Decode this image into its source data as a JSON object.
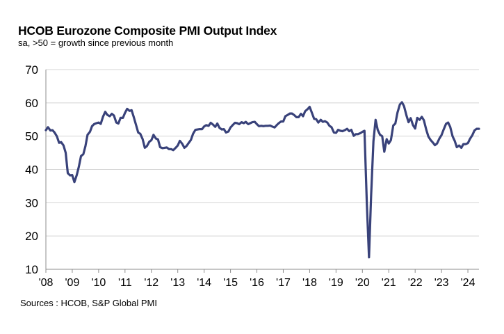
{
  "chart_data": {
    "type": "line",
    "title": "HCOB Eurozone Composite PMI Output Index",
    "subtitle": "sa, >50 = growth  since previous month",
    "source": "Sources : HCOB, S&P Global PMI",
    "xlabel": "",
    "ylabel": "",
    "ylim": [
      10,
      70
    ],
    "yticks": [
      10,
      20,
      30,
      40,
      50,
      60,
      70
    ],
    "xlim": [
      2008.0,
      2024.42
    ],
    "xticks": [
      {
        "x": 2008,
        "label": "'08"
      },
      {
        "x": 2009,
        "label": "'09"
      },
      {
        "x": 2010,
        "label": "'10"
      },
      {
        "x": 2011,
        "label": "'11"
      },
      {
        "x": 2012,
        "label": "'12"
      },
      {
        "x": 2013,
        "label": "'13"
      },
      {
        "x": 2014,
        "label": "'14"
      },
      {
        "x": 2015,
        "label": "'15"
      },
      {
        "x": 2016,
        "label": "'16"
      },
      {
        "x": 2017,
        "label": "'17"
      },
      {
        "x": 2018,
        "label": "'18"
      },
      {
        "x": 2019,
        "label": "'19"
      },
      {
        "x": 2020,
        "label": "'20"
      },
      {
        "x": 2021,
        "label": "'21"
      },
      {
        "x": 2022,
        "label": "'22"
      },
      {
        "x": 2023,
        "label": "'23"
      },
      {
        "x": 2024,
        "label": "'24"
      }
    ],
    "grid": true,
    "color": "#39427a",
    "series": [
      {
        "name": "Composite PMI Output Index",
        "x": [
          2008.0,
          2008.08,
          2008.17,
          2008.25,
          2008.33,
          2008.42,
          2008.5,
          2008.58,
          2008.67,
          2008.75,
          2008.83,
          2008.92,
          2009.0,
          2009.08,
          2009.17,
          2009.25,
          2009.33,
          2009.42,
          2009.5,
          2009.58,
          2009.67,
          2009.75,
          2009.83,
          2009.92,
          2010.0,
          2010.08,
          2010.17,
          2010.25,
          2010.33,
          2010.42,
          2010.5,
          2010.58,
          2010.67,
          2010.75,
          2010.83,
          2010.92,
          2011.0,
          2011.08,
          2011.17,
          2011.25,
          2011.33,
          2011.42,
          2011.5,
          2011.58,
          2011.67,
          2011.75,
          2011.83,
          2011.92,
          2012.0,
          2012.08,
          2012.17,
          2012.25,
          2012.33,
          2012.42,
          2012.5,
          2012.58,
          2012.67,
          2012.75,
          2012.83,
          2012.92,
          2013.0,
          2013.08,
          2013.17,
          2013.25,
          2013.33,
          2013.42,
          2013.5,
          2013.58,
          2013.67,
          2013.75,
          2013.83,
          2013.92,
          2014.0,
          2014.08,
          2014.17,
          2014.25,
          2014.33,
          2014.42,
          2014.5,
          2014.58,
          2014.67,
          2014.75,
          2014.83,
          2014.92,
          2015.0,
          2015.08,
          2015.17,
          2015.25,
          2015.33,
          2015.42,
          2015.5,
          2015.58,
          2015.67,
          2015.75,
          2015.83,
          2015.92,
          2016.0,
          2016.08,
          2016.17,
          2016.25,
          2016.33,
          2016.42,
          2016.5,
          2016.58,
          2016.67,
          2016.75,
          2016.83,
          2016.92,
          2017.0,
          2017.08,
          2017.17,
          2017.25,
          2017.33,
          2017.42,
          2017.5,
          2017.58,
          2017.67,
          2017.75,
          2017.83,
          2017.92,
          2018.0,
          2018.08,
          2018.17,
          2018.25,
          2018.33,
          2018.42,
          2018.5,
          2018.58,
          2018.67,
          2018.75,
          2018.83,
          2018.92,
          2019.0,
          2019.08,
          2019.17,
          2019.25,
          2019.33,
          2019.42,
          2019.5,
          2019.58,
          2019.67,
          2019.75,
          2019.83,
          2019.92,
          2020.0,
          2020.08,
          2020.17,
          2020.25,
          2020.33,
          2020.42,
          2020.5,
          2020.58,
          2020.67,
          2020.75,
          2020.83,
          2020.92,
          2021.0,
          2021.08,
          2021.17,
          2021.25,
          2021.33,
          2021.42,
          2021.5,
          2021.58,
          2021.67,
          2021.75,
          2021.83,
          2021.92,
          2022.0,
          2022.08,
          2022.17,
          2022.25,
          2022.33,
          2022.42,
          2022.5,
          2022.58,
          2022.67,
          2022.75,
          2022.83,
          2022.92,
          2023.0,
          2023.08,
          2023.17,
          2023.25,
          2023.33,
          2023.42,
          2023.5,
          2023.58,
          2023.67,
          2023.75,
          2023.83,
          2023.92,
          2024.0,
          2024.08,
          2024.17,
          2024.25,
          2024.33,
          2024.42
        ],
        "values": [
          51.8,
          52.7,
          51.7,
          51.8,
          51.1,
          49.9,
          48.0,
          48.2,
          47.2,
          45.0,
          38.9,
          38.2,
          38.3,
          36.2,
          38.3,
          40.8,
          44.0,
          44.6,
          47.0,
          50.4,
          51.3,
          53.0,
          53.6,
          53.9,
          54.1,
          53.7,
          55.9,
          57.3,
          56.4,
          56.0,
          56.7,
          56.2,
          54.1,
          53.8,
          55.5,
          55.5,
          57.0,
          58.2,
          57.6,
          57.8,
          55.8,
          53.3,
          51.1,
          50.7,
          49.1,
          46.5,
          47.0,
          48.3,
          48.8,
          50.4,
          49.3,
          49.0,
          46.7,
          46.4,
          46.5,
          46.6,
          46.1,
          46.1,
          45.8,
          46.5,
          47.2,
          48.6,
          47.7,
          46.5,
          47.0,
          48.0,
          48.9,
          50.7,
          51.9,
          52.0,
          52.1,
          52.1,
          52.9,
          53.3,
          53.1,
          54.0,
          53.5,
          52.8,
          53.8,
          52.5,
          52.0,
          52.1,
          51.1,
          51.4,
          52.6,
          53.3,
          54.0,
          53.9,
          53.6,
          54.2,
          53.9,
          54.3,
          53.6,
          53.9,
          54.2,
          54.3,
          53.6,
          53.0,
          53.1,
          53.0,
          53.1,
          53.1,
          53.2,
          52.9,
          52.6,
          53.3,
          53.9,
          54.4,
          54.4,
          56.0,
          56.4,
          56.8,
          56.8,
          56.3,
          55.7,
          55.7,
          56.7,
          56.0,
          57.5,
          58.1,
          58.8,
          57.1,
          55.2,
          55.1,
          54.1,
          54.9,
          54.3,
          54.5,
          54.1,
          53.1,
          52.7,
          51.1,
          51.0,
          51.9,
          51.6,
          51.5,
          51.8,
          52.2,
          51.5,
          51.9,
          50.1,
          50.6,
          50.6,
          50.9,
          51.3,
          51.6,
          29.7,
          13.6,
          31.9,
          48.5,
          54.9,
          51.9,
          50.4,
          50.0,
          45.3,
          49.1,
          47.8,
          48.8,
          53.2,
          53.8,
          57.1,
          59.5,
          60.2,
          59.0,
          56.2,
          54.2,
          55.4,
          53.3,
          52.3,
          55.5,
          54.9,
          55.8,
          54.8,
          52.0,
          49.9,
          48.9,
          48.1,
          47.3,
          47.8,
          49.3,
          50.3,
          52.0,
          53.7,
          54.1,
          52.8,
          49.9,
          48.6,
          46.7,
          47.2,
          46.5,
          47.6,
          47.6,
          47.9,
          49.2,
          50.3,
          51.7,
          52.2,
          52.2
        ]
      }
    ]
  }
}
